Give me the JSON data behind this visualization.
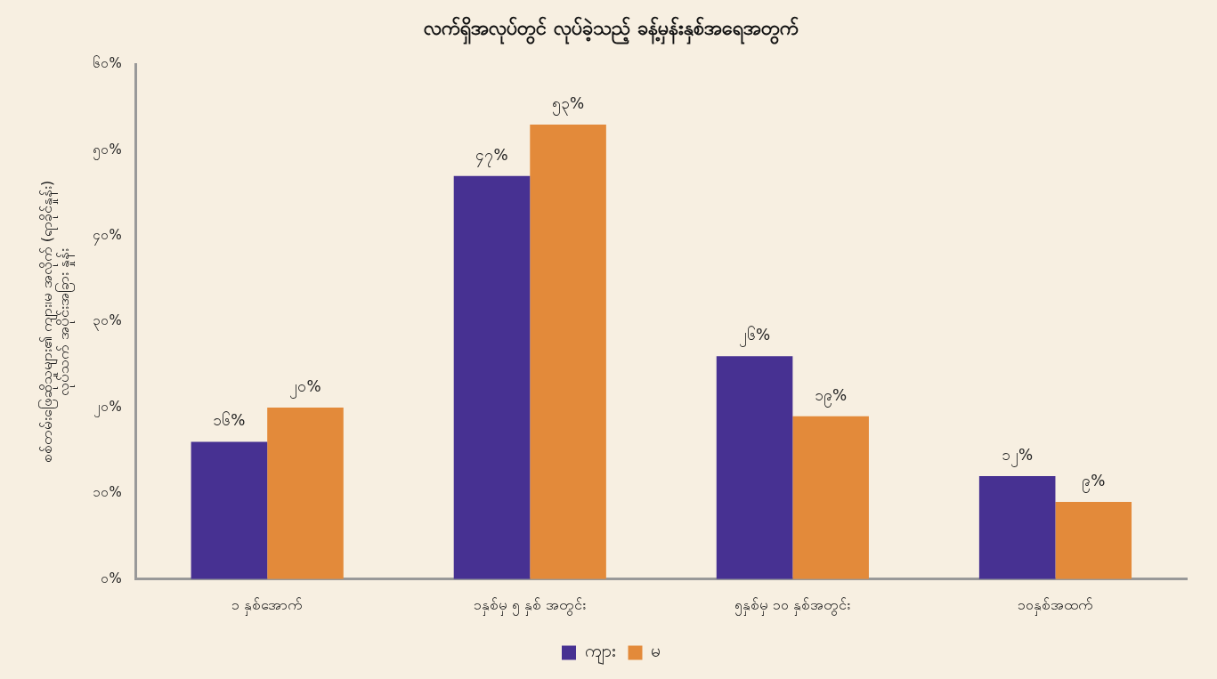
{
  "chart_data": {
    "type": "bar",
    "title": "လက်ရှိအလုပ်တွင် လုပ်ခဲ့သည့် ခန့်မှန်းနှစ်အရေအတွက်",
    "ylabel": "စစ်တမ်းဖြေဆိုသူများ၏ ကျား၊မ အလိုက် (ရာခိုင်နှုန်း)\nလုပ်သက် အပိုင်းအခြား နှုန်း",
    "categories": [
      "၁ နှစ်အောက်",
      "၁နှစ်မှ ၅ နှစ် အတွင်း",
      "၅နှစ်မှ ၁၀ နှစ်အတွင်း",
      "၁၀နှစ်အထက်"
    ],
    "series": [
      {
        "name": "ကျား",
        "color": "#473192",
        "values": [
          16,
          47,
          26,
          12
        ],
        "value_labels": [
          "၁၆%",
          "၄၇%",
          "၂၆%",
          "၁၂%"
        ]
      },
      {
        "name": "မ",
        "color": "#e38a3a",
        "values": [
          20,
          53,
          19,
          9
        ],
        "value_labels": [
          "၂၀%",
          "၅၃%",
          "၁၉%",
          "၉%"
        ]
      }
    ],
    "ylim": [
      0,
      60
    ],
    "yticks": [
      {
        "value": 0,
        "label": "၀%"
      },
      {
        "value": 10,
        "label": "၁၀%"
      },
      {
        "value": 20,
        "label": "၂၀%"
      },
      {
        "value": 30,
        "label": "၃၀%"
      },
      {
        "value": 40,
        "label": "၄၀%"
      },
      {
        "value": 50,
        "label": "၅၀%"
      },
      {
        "value": 60,
        "label": "၆၀%"
      }
    ],
    "grid": false,
    "legend": "bottom"
  }
}
